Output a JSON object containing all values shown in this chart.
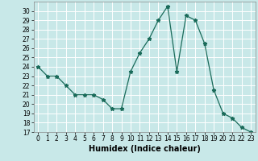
{
  "x": [
    0,
    1,
    2,
    3,
    4,
    5,
    6,
    7,
    8,
    9,
    10,
    11,
    12,
    13,
    14,
    15,
    16,
    17,
    18,
    19,
    20,
    21,
    22,
    23
  ],
  "y": [
    24,
    23,
    23,
    22,
    21,
    21,
    21,
    20.5,
    19.5,
    19.5,
    23.5,
    25.5,
    27,
    29,
    30.5,
    23.5,
    29.5,
    29,
    26.5,
    21.5,
    19,
    18.5,
    17.5,
    17
  ],
  "line_color": "#1a6b5a",
  "marker": "*",
  "marker_size": 3.5,
  "bg_color": "#c8e8e8",
  "grid_color": "#ffffff",
  "xlabel": "Humidex (Indice chaleur)",
  "ylim": [
    17,
    31
  ],
  "xlim": [
    -0.5,
    23.5
  ],
  "yticks": [
    17,
    18,
    19,
    20,
    21,
    22,
    23,
    24,
    25,
    26,
    27,
    28,
    29,
    30
  ],
  "xticks": [
    0,
    1,
    2,
    3,
    4,
    5,
    6,
    7,
    8,
    9,
    10,
    11,
    12,
    13,
    14,
    15,
    16,
    17,
    18,
    19,
    20,
    21,
    22,
    23
  ],
  "tick_fontsize": 5.5,
  "xlabel_fontsize": 7
}
